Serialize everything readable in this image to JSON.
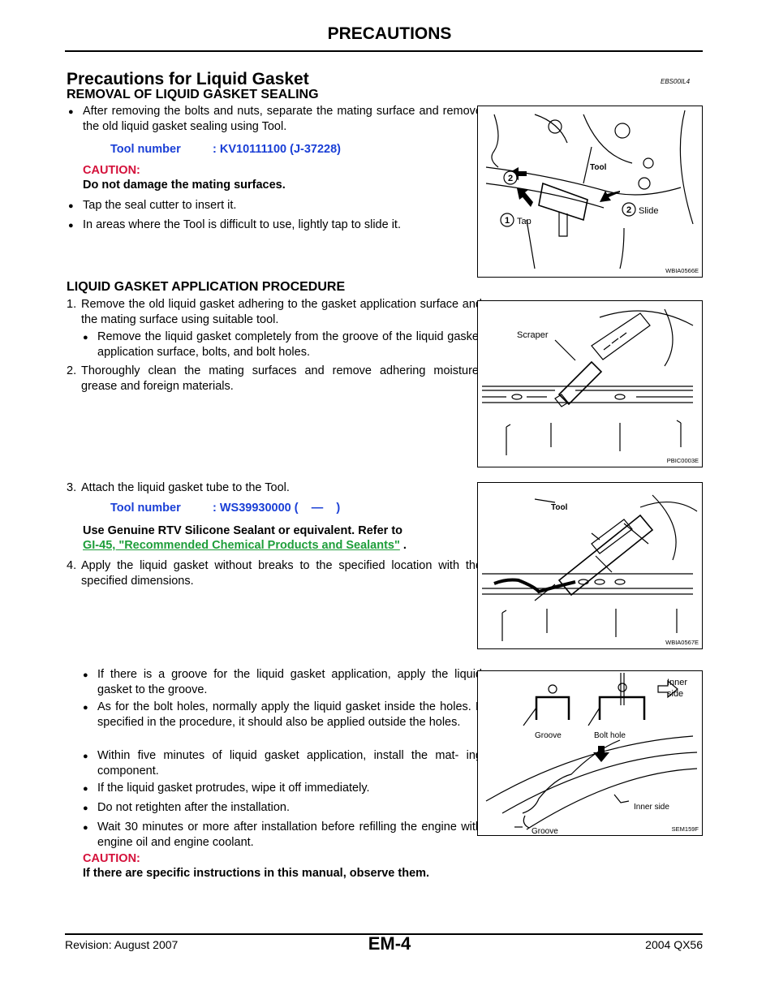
{
  "header": {
    "title": "PRECAUTIONS"
  },
  "section": {
    "title": "Precautions for Liquid Gasket",
    "code": "EBS00IL4"
  },
  "removal": {
    "title": "REMOVAL OF LIQUID GASKET SEALING",
    "bullet1": "After removing the bolts and nuts, separate the mating surface and remove the old liquid gasket sealing using Tool.",
    "tool_label": "Tool number",
    "tool_value": ": KV10111100 (J-37228)",
    "caution_label": "CAUTION:",
    "caution_text": "Do not damage the mating surfaces.",
    "bullet2": "Tap the seal cutter to insert it.",
    "bullet3": "In areas where the Tool is difficult to use, lightly tap to slide it.",
    "figure": {
      "code": "WBIA0566E",
      "label_tool": "Tool",
      "label_tap": "Tap",
      "label_slide": "Slide",
      "num1": "1",
      "num2": "2"
    }
  },
  "application": {
    "title": "LIQUID GASKET APPLICATION PROCEDURE",
    "step1_num": "1.",
    "step1": "Remove the old liquid gasket adhering to the gasket application surface and the mating surface using suitable tool.",
    "step1_bullet": "Remove the liquid gasket completely from the groove of the liquid gasket application surface, bolts, and bolt holes.",
    "step2_num": "2.",
    "step2": "Thoroughly clean the mating surfaces and remove adhering moisture, grease and foreign materials.",
    "figure1": {
      "code": "PBIC0003E",
      "label": "Scraper"
    },
    "step3_num": "3.",
    "step3": "Attach the liquid gasket tube to the Tool.",
    "tool_label": "Tool number",
    "tool_value": ": WS39930000 (    —    )",
    "genuine_text": "Use Genuine RTV Silicone Sealant or equivalent. Refer to",
    "link_text": "GI-45, \"Recommended Chemical Products and Sealants\"",
    "link_after": " .",
    "figure2": {
      "code": "WBIA0567E",
      "label": "Tool"
    },
    "step4_num": "4.",
    "step4": "Apply the liquid gasket without breaks to the specified location with the specified dimensions.",
    "bullets": [
      "If there is a groove for the liquid gasket application, apply the liquid gasket to the groove.",
      "As for the bolt holes, normally apply the liquid gasket inside the holes. If specified in the procedure, it should also be applied outside the holes.",
      "Within five minutes of liquid gasket application, install the mat- ing component.",
      "If the liquid gasket protrudes, wipe it off immediately.",
      "Do not retighten after the installation.",
      "Wait 30 minutes or more after installation before refilling the engine with engine oil and engine coolant."
    ],
    "figure3": {
      "code": "SEM159F",
      "label_inner1": "Inner",
      "label_inner2": "side",
      "label_groove": "Groove",
      "label_bolthole": "Bolt hole",
      "label_innerside": "Inner side",
      "label_groove2": "Groove"
    },
    "caution_label": "CAUTION:",
    "caution_text": "If there are specific instructions in this manual, observe them."
  },
  "footer": {
    "revision": "Revision: August 2007",
    "page": "EM-4",
    "model": "2004 QX56"
  }
}
